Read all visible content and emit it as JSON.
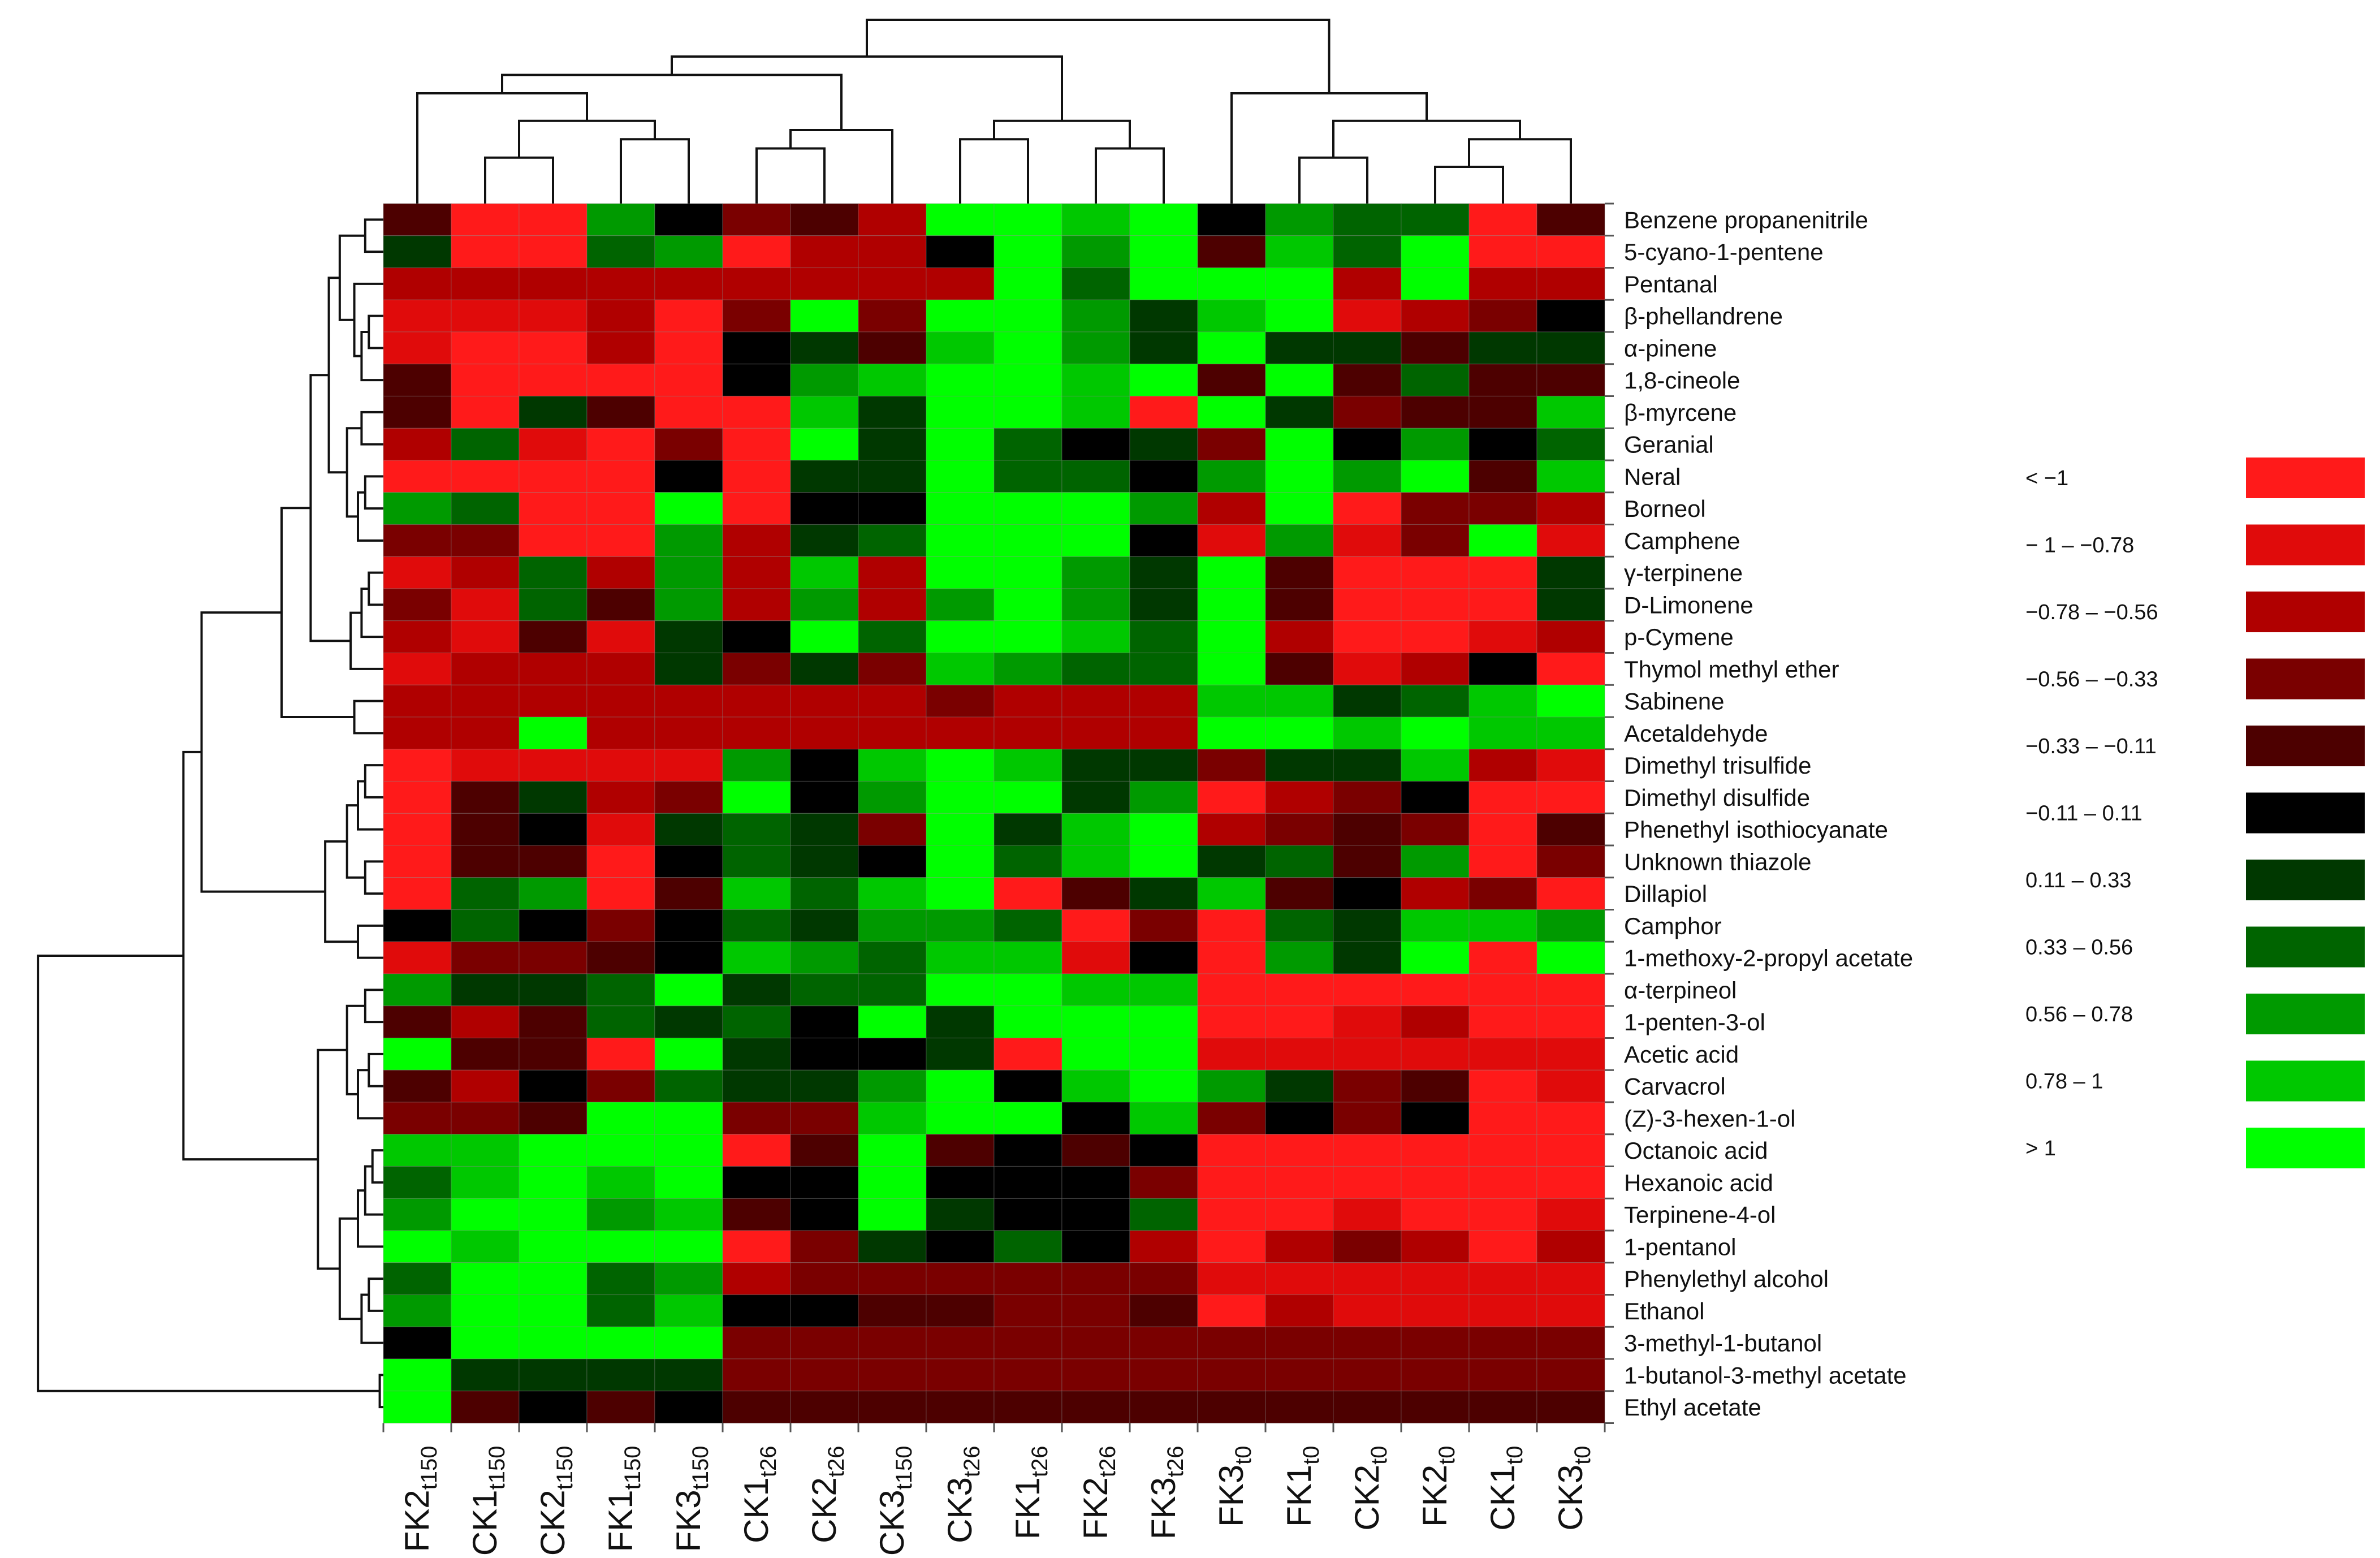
{
  "chart_data": {
    "type": "heatmap",
    "title": "",
    "columns": [
      {
        "base": "FK2",
        "sub": "t150"
      },
      {
        "base": "CK1",
        "sub": "t150"
      },
      {
        "base": "CK2",
        "sub": "t150"
      },
      {
        "base": "FK1",
        "sub": "t150"
      },
      {
        "base": "FK3",
        "sub": "t150"
      },
      {
        "base": "CK1",
        "sub": "t26"
      },
      {
        "base": "CK2",
        "sub": "t26"
      },
      {
        "base": "CK3",
        "sub": "t150"
      },
      {
        "base": "CK3",
        "sub": "t26"
      },
      {
        "base": "FK1",
        "sub": "t26"
      },
      {
        "base": "FK2",
        "sub": "t26"
      },
      {
        "base": "FK3",
        "sub": "t26"
      },
      {
        "base": "FK3",
        "sub": "t0"
      },
      {
        "base": "FK1",
        "sub": "t0"
      },
      {
        "base": "CK2",
        "sub": "t0"
      },
      {
        "base": "FK2",
        "sub": "t0"
      },
      {
        "base": "CK1",
        "sub": "t0"
      },
      {
        "base": "CK3",
        "sub": "t0"
      }
    ],
    "rows": [
      "Benzene propanenitrile",
      "5-cyano-1-pentene",
      "Pentanal",
      "β-phellandrene",
      "α-pinene",
      "1,8-cineole",
      "β-myrcene",
      "Geranial",
      "Neral",
      "Borneol",
      "Camphene",
      "γ-terpinene",
      "D-Limonene",
      "p-Cymene",
      "Thymol methyl ether",
      "Sabinene",
      "Acetaldehyde",
      "Dimethyl trisulfide",
      "Dimethyl disulfide",
      "Phenethyl isothiocyanate",
      "Unknown thiazole",
      "Dillapiol",
      "Camphor",
      "1-methoxy-2-propyl acetate",
      "α-terpineol",
      "1-penten-3-ol",
      "Acetic acid",
      "Carvacrol",
      "(Z)-3-hexen-1-ol",
      "Octanoic acid",
      "Hexanoic acid",
      "Terpinene-4-ol",
      "1-pentanol",
      "Phenylethyl alcohol",
      "Ethanol",
      "3-methyl-1-butanol",
      "1-butanol-3-methyl acetate",
      "Ethyl acetate"
    ],
    "legend": [
      {
        "label": "< −1",
        "color": "#ff1a1a"
      },
      {
        "label": "− 1 – −0.78",
        "color": "#e00b0b"
      },
      {
        "label": "−0.78 – −0.56",
        "color": "#b00000"
      },
      {
        "label": "−0.56 – −0.33",
        "color": "#7a0000"
      },
      {
        "label": "−0.33 – −0.11",
        "color": "#4d0000"
      },
      {
        "label": "−0.11 – 0.11",
        "color": "#000000"
      },
      {
        "label": "0.11 – 0.33",
        "color": "#003800"
      },
      {
        "label": "0.33 – 0.56",
        "color": "#006400"
      },
      {
        "label": "0.56 – 0.78",
        "color": "#009a00"
      },
      {
        "label": "0.78 – 1",
        "color": "#00c800"
      },
      {
        "label": "> 1",
        "color": "#00ff00"
      }
    ],
    "cell_levels": [
      [
        4,
        0,
        0,
        8,
        5,
        3,
        4,
        2,
        10,
        10,
        9,
        10,
        5,
        8,
        7,
        7,
        0,
        4
      ],
      [
        6,
        0,
        0,
        7,
        8,
        0,
        2,
        2,
        5,
        10,
        8,
        10,
        4,
        9,
        7,
        10,
        0,
        0
      ],
      [
        2,
        2,
        2,
        2,
        2,
        2,
        2,
        2,
        2,
        10,
        7,
        10,
        10,
        10,
        2,
        10,
        2,
        2
      ],
      [
        1,
        1,
        1,
        2,
        0,
        3,
        10,
        3,
        10,
        10,
        8,
        6,
        9,
        10,
        1,
        2,
        3,
        5
      ],
      [
        1,
        0,
        0,
        2,
        0,
        5,
        6,
        4,
        9,
        10,
        8,
        6,
        10,
        6,
        6,
        4,
        6,
        6
      ],
      [
        4,
        0,
        0,
        0,
        0,
        5,
        8,
        9,
        10,
        10,
        9,
        10,
        4,
        10,
        4,
        7,
        4,
        4
      ],
      [
        4,
        0,
        6,
        4,
        0,
        0,
        9,
        6,
        10,
        10,
        9,
        0,
        10,
        6,
        3,
        4,
        4,
        9
      ],
      [
        2,
        7,
        1,
        0,
        3,
        0,
        10,
        6,
        10,
        7,
        5,
        6,
        3,
        10,
        5,
        8,
        5,
        7
      ],
      [
        0,
        0,
        0,
        0,
        5,
        0,
        6,
        6,
        10,
        7,
        7,
        5,
        8,
        10,
        8,
        10,
        4,
        9
      ],
      [
        8,
        7,
        0,
        0,
        10,
        0,
        5,
        5,
        10,
        10,
        10,
        8,
        2,
        10,
        0,
        3,
        3,
        2
      ],
      [
        3,
        3,
        0,
        0,
        8,
        2,
        6,
        7,
        10,
        10,
        10,
        5,
        1,
        8,
        1,
        3,
        10,
        1
      ],
      [
        1,
        2,
        7,
        2,
        8,
        2,
        9,
        2,
        10,
        10,
        8,
        6,
        10,
        4,
        0,
        0,
        0,
        6
      ],
      [
        3,
        1,
        7,
        4,
        8,
        2,
        8,
        2,
        8,
        10,
        8,
        6,
        10,
        4,
        0,
        0,
        0,
        6
      ],
      [
        2,
        1,
        4,
        1,
        6,
        5,
        10,
        7,
        10,
        10,
        9,
        7,
        10,
        2,
        0,
        0,
        1,
        2
      ],
      [
        1,
        2,
        2,
        2,
        6,
        3,
        6,
        3,
        9,
        8,
        7,
        7,
        10,
        4,
        1,
        2,
        5,
        0
      ],
      [
        2,
        2,
        2,
        2,
        2,
        2,
        2,
        2,
        3,
        2,
        2,
        2,
        9,
        9,
        6,
        7,
        9,
        10
      ],
      [
        2,
        2,
        10,
        2,
        2,
        2,
        2,
        2,
        2,
        2,
        2,
        2,
        10,
        10,
        9,
        10,
        9,
        9
      ],
      [
        0,
        1,
        1,
        1,
        1,
        8,
        5,
        9,
        10,
        9,
        6,
        6,
        3,
        6,
        6,
        9,
        2,
        1
      ],
      [
        0,
        4,
        6,
        2,
        3,
        10,
        5,
        8,
        10,
        10,
        6,
        8,
        0,
        2,
        3,
        5,
        0,
        0
      ],
      [
        0,
        4,
        5,
        1,
        6,
        7,
        6,
        3,
        10,
        6,
        9,
        10,
        2,
        3,
        4,
        3,
        0,
        4
      ],
      [
        0,
        4,
        4,
        0,
        5,
        7,
        6,
        5,
        10,
        7,
        9,
        10,
        6,
        7,
        4,
        8,
        0,
        3
      ],
      [
        0,
        7,
        8,
        0,
        4,
        9,
        7,
        9,
        10,
        0,
        4,
        6,
        9,
        4,
        5,
        2,
        3,
        0
      ],
      [
        5,
        7,
        5,
        3,
        5,
        7,
        6,
        8,
        8,
        7,
        0,
        3,
        0,
        7,
        6,
        9,
        9,
        8
      ],
      [
        1,
        3,
        3,
        4,
        5,
        9,
        8,
        7,
        9,
        9,
        1,
        5,
        0,
        8,
        6,
        10,
        0,
        10
      ],
      [
        8,
        6,
        6,
        7,
        10,
        6,
        7,
        7,
        10,
        10,
        9,
        9,
        0,
        0,
        0,
        0,
        0,
        0
      ],
      [
        4,
        2,
        4,
        7,
        6,
        7,
        5,
        10,
        6,
        10,
        10,
        10,
        0,
        0,
        1,
        2,
        0,
        0
      ],
      [
        10,
        4,
        4,
        0,
        10,
        6,
        5,
        5,
        6,
        0,
        10,
        10,
        1,
        1,
        1,
        1,
        1,
        1
      ],
      [
        4,
        2,
        5,
        3,
        7,
        6,
        6,
        8,
        10,
        5,
        9,
        10,
        8,
        6,
        3,
        4,
        0,
        1
      ],
      [
        3,
        3,
        4,
        10,
        10,
        3,
        3,
        9,
        10,
        10,
        5,
        9,
        3,
        5,
        3,
        5,
        0,
        0
      ],
      [
        9,
        9,
        10,
        10,
        10,
        0,
        4,
        10,
        4,
        5,
        4,
        5,
        0,
        0,
        0,
        0,
        0,
        0
      ],
      [
        7,
        9,
        10,
        9,
        10,
        5,
        5,
        10,
        5,
        5,
        5,
        3,
        0,
        0,
        0,
        0,
        0,
        0
      ],
      [
        8,
        10,
        10,
        8,
        9,
        4,
        5,
        10,
        6,
        5,
        5,
        7,
        0,
        0,
        1,
        0,
        0,
        1
      ],
      [
        10,
        9,
        10,
        10,
        10,
        0,
        3,
        6,
        5,
        7,
        5,
        2,
        0,
        2,
        3,
        2,
        0,
        2
      ],
      [
        7,
        10,
        10,
        7,
        8,
        2,
        3,
        3,
        3,
        3,
        3,
        3,
        1,
        1,
        1,
        1,
        1,
        1
      ],
      [
        8,
        10,
        10,
        7,
        9,
        5,
        5,
        4,
        4,
        3,
        3,
        4,
        0,
        2,
        1,
        1,
        1,
        1
      ],
      [
        5,
        10,
        10,
        10,
        10,
        3,
        3,
        3,
        3,
        3,
        3,
        3,
        3,
        3,
        3,
        3,
        3,
        3
      ],
      [
        10,
        6,
        6,
        6,
        6,
        3,
        3,
        3,
        3,
        3,
        3,
        3,
        3,
        3,
        3,
        3,
        3,
        3
      ],
      [
        10,
        4,
        5,
        4,
        5,
        4,
        4,
        4,
        4,
        4,
        4,
        4,
        4,
        4,
        4,
        4,
        4,
        4
      ]
    ]
  }
}
